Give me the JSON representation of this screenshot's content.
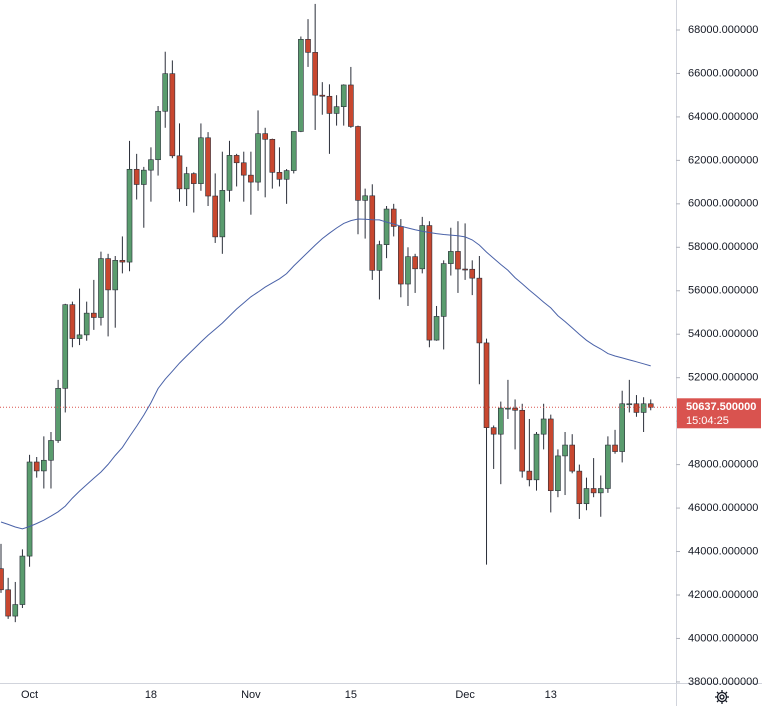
{
  "chart_data": {
    "type": "candlestick",
    "categories": [
      null,
      null,
      null,
      null,
      "Oct",
      null,
      null,
      null,
      null,
      null,
      null,
      null,
      null,
      null,
      null,
      null,
      null,
      null,
      null,
      null,
      null,
      "18",
      null,
      null,
      null,
      null,
      null,
      null,
      null,
      null,
      null,
      null,
      null,
      null,
      null,
      "Nov",
      null,
      null,
      null,
      null,
      null,
      null,
      null,
      null,
      null,
      null,
      null,
      null,
      null,
      "15",
      null,
      null,
      null,
      null,
      null,
      null,
      null,
      null,
      null,
      null,
      null,
      null,
      null,
      null,
      null,
      "Dec",
      null,
      null,
      null,
      null,
      null,
      null,
      null,
      null,
      null,
      null,
      null,
      "13",
      null,
      null,
      null,
      null,
      null,
      null,
      null,
      null,
      null,
      null,
      null,
      null,
      null,
      null
    ],
    "open": [
      43210,
      42240,
      41030,
      41560,
      43790,
      48120,
      47710,
      48200,
      49110,
      51510,
      55360,
      53800,
      53970,
      54970,
      54770,
      57480,
      56040,
      57400,
      57320,
      61590,
      60890,
      61550,
      62030,
      64260,
      65990,
      62210,
      60690,
      61390,
      60930,
      63040,
      60360,
      58480,
      60620,
      62230,
      61890,
      61320,
      61000,
      63230,
      62970,
      61450,
      61130,
      61530,
      63330,
      67570,
      66970,
      65000,
      64950,
      64160,
      64470,
      65470,
      63560,
      60160,
      60370,
      56940,
      58120,
      59760,
      58960,
      56310,
      57570,
      57010,
      59000,
      53730,
      54820,
      57250,
      57810,
      57000,
      56990,
      56580,
      53600,
      49700,
      49400,
      50600,
      50600,
      50500,
      47700,
      47300,
      49400,
      50100,
      46800,
      48400,
      48900,
      47700,
      46200,
      46900,
      46700,
      46900,
      48900,
      48600,
      50800,
      50800,
      50400,
      50800
    ],
    "high": [
      44350,
      42790,
      42600,
      44100,
      48450,
      48350,
      49300,
      49500,
      51900,
      55400,
      55500,
      56100,
      55500,
      56500,
      57800,
      57700,
      57600,
      58500,
      62900,
      62300,
      61700,
      62600,
      64500,
      67000,
      66600,
      63700,
      61700,
      61450,
      63700,
      63300,
      61400,
      62400,
      62900,
      62300,
      62400,
      62400,
      64300,
      63500,
      63000,
      62600,
      61600,
      63300,
      67700,
      68500,
      69200,
      65600,
      65500,
      65000,
      65500,
      66300,
      63600,
      60700,
      60900,
      58300,
      59900,
      60000,
      59300,
      58000,
      57700,
      59400,
      59200,
      55300,
      57400,
      58900,
      59200,
      59100,
      57400,
      57600,
      53800,
      49800,
      50900,
      51900,
      51000,
      50800,
      50100,
      49500,
      50800,
      50300,
      48700,
      49500,
      49400,
      48000,
      47400,
      48300,
      47500,
      49300,
      49600,
      51400,
      51900,
      51200,
      51100,
      51000
    ],
    "low": [
      42100,
      40900,
      40750,
      41400,
      43300,
      47400,
      46900,
      46900,
      49000,
      50400,
      53400,
      53500,
      53700,
      54200,
      54400,
      53900,
      54300,
      56800,
      56900,
      60200,
      58900,
      60100,
      61300,
      63500,
      62100,
      60100,
      59900,
      59600,
      60600,
      59900,
      58200,
      57700,
      60100,
      60800,
      60100,
      59500,
      60600,
      60300,
      60700,
      60800,
      60000,
      61400,
      63300,
      66300,
      63400,
      64100,
      62300,
      63600,
      63600,
      63500,
      58600,
      58400,
      56500,
      55600,
      57500,
      58500,
      55700,
      55300,
      55900,
      56800,
      53400,
      53700,
      53300,
      56700,
      55900,
      56500,
      55800,
      51700,
      43400,
      47800,
      47100,
      50100,
      48700,
      47400,
      47000,
      46800,
      48700,
      45800,
      46500,
      46600,
      47600,
      45500,
      45900,
      46500,
      45600,
      46700,
      48500,
      48100,
      50400,
      50200,
      49500,
      50500
    ],
    "close": [
      42240,
      41030,
      41560,
      43790,
      48120,
      47710,
      48200,
      49110,
      51510,
      55360,
      53800,
      53970,
      54970,
      54770,
      57480,
      56040,
      57400,
      57320,
      61590,
      60890,
      61550,
      62030,
      64260,
      65990,
      62210,
      60690,
      61390,
      60930,
      63040,
      60360,
      58480,
      60620,
      62230,
      61890,
      61320,
      61000,
      63230,
      62970,
      61450,
      61130,
      61530,
      63330,
      67570,
      66970,
      65000,
      64950,
      64160,
      64470,
      65470,
      63560,
      60160,
      60370,
      56940,
      58120,
      59760,
      58960,
      56310,
      57570,
      57010,
      59000,
      53730,
      54820,
      57250,
      57810,
      57000,
      56990,
      56580,
      53600,
      49700,
      49400,
      50600,
      50600,
      50500,
      47700,
      47300,
      49400,
      50100,
      46800,
      48400,
      48900,
      47700,
      46200,
      46900,
      46700,
      46900,
      48900,
      48600,
      50800,
      50800,
      50400,
      50800,
      50637.5
    ],
    "up_color": "#5a9c6e",
    "down_color": "#c8472f",
    "wick_color": "#2a2e39",
    "series": [
      {
        "color": "#4a62a8",
        "values": [
          45360,
          45250,
          45130,
          45040,
          45150,
          45290,
          45440,
          45630,
          45830,
          46090,
          46460,
          46780,
          47080,
          47370,
          47660,
          48010,
          48420,
          48790,
          49290,
          49770,
          50280,
          50840,
          51500,
          51930,
          52300,
          52670,
          53000,
          53320,
          53640,
          53950,
          54230,
          54510,
          54840,
          55160,
          55440,
          55720,
          55940,
          56170,
          56360,
          56550,
          56790,
          57140,
          57460,
          57780,
          58100,
          58400,
          58650,
          58890,
          59100,
          59230,
          59300,
          59290,
          59270,
          59260,
          59160,
          59070,
          58970,
          58890,
          58810,
          58740,
          58680,
          58630,
          58590,
          58560,
          58530,
          58480,
          58340,
          58100,
          57780,
          57490,
          57210,
          56940,
          56600,
          56320,
          56030,
          55760,
          55480,
          55210,
          54850,
          54580,
          54290,
          54000,
          53720,
          53500,
          53320,
          53110,
          53000,
          52910,
          52820,
          52730,
          52640,
          52540
        ]
      }
    ],
    "ylim": [
      37950,
      69380
    ],
    "yticks": [
      {
        "value": 38000,
        "label": "38000.000000"
      },
      {
        "value": 40000,
        "label": "40000.000000"
      },
      {
        "value": 42000,
        "label": "42000.000000"
      },
      {
        "value": 44000,
        "label": "44000.000000"
      },
      {
        "value": 46000,
        "label": "46000.000000"
      },
      {
        "value": 48000,
        "label": "48000.000000"
      },
      {
        "value": 50000,
        "label": "50000.000000"
      },
      {
        "value": 52000,
        "label": "52000.000000"
      },
      {
        "value": 54000,
        "label": "54000.000000"
      },
      {
        "value": 56000,
        "label": "56000.000000"
      },
      {
        "value": 58000,
        "label": "58000.000000"
      },
      {
        "value": 60000,
        "label": "60000.000000"
      },
      {
        "value": 62000,
        "label": "62000.000000"
      },
      {
        "value": 64000,
        "label": "64000.000000"
      },
      {
        "value": 66000,
        "label": "66000.000000"
      },
      {
        "value": 68000,
        "label": "68000.000000"
      }
    ],
    "last_price": {
      "value": 50637.5,
      "label": "50637.500000",
      "color": "#d9534f"
    },
    "countdown": "15:04:25"
  }
}
